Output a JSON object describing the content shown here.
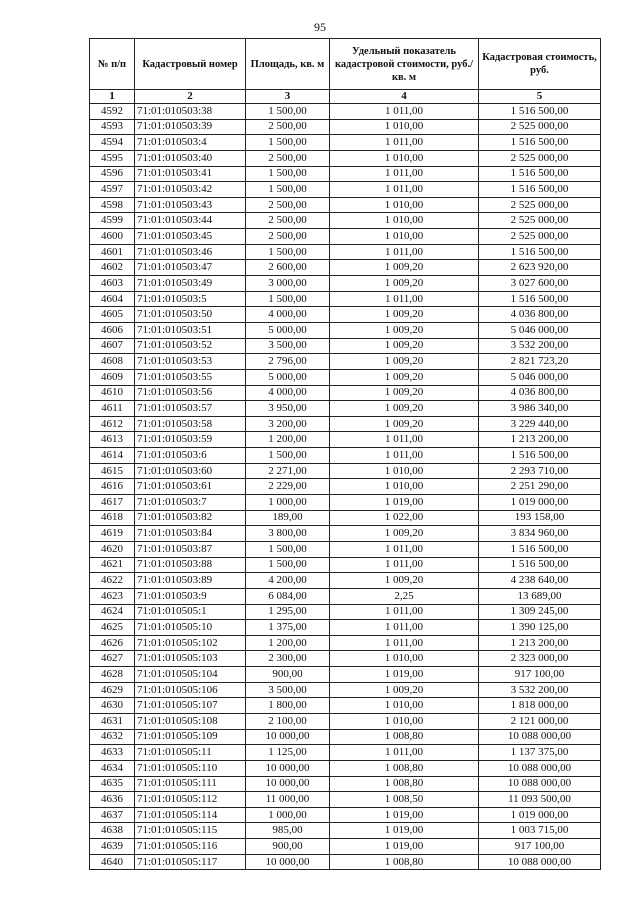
{
  "page_number": "95",
  "table": {
    "headers": [
      "№ п/п",
      "Кадастровый номер",
      "Площадь, кв. м",
      "Удельный показатель кадастровой стоимости, руб./кв. м",
      "Кадастровая стоимость, руб."
    ],
    "column_numbers": [
      "1",
      "2",
      "3",
      "4",
      "5"
    ],
    "rows": [
      [
        "4592",
        "71:01:010503:38",
        "1 500,00",
        "1 011,00",
        "1 516 500,00"
      ],
      [
        "4593",
        "71:01:010503:39",
        "2 500,00",
        "1 010,00",
        "2 525 000,00"
      ],
      [
        "4594",
        "71:01:010503:4",
        "1 500,00",
        "1 011,00",
        "1 516 500,00"
      ],
      [
        "4595",
        "71:01:010503:40",
        "2 500,00",
        "1 010,00",
        "2 525 000,00"
      ],
      [
        "4596",
        "71:01:010503:41",
        "1 500,00",
        "1 011,00",
        "1 516 500,00"
      ],
      [
        "4597",
        "71:01:010503:42",
        "1 500,00",
        "1 011,00",
        "1 516 500,00"
      ],
      [
        "4598",
        "71:01:010503:43",
        "2 500,00",
        "1 010,00",
        "2 525 000,00"
      ],
      [
        "4599",
        "71:01:010503:44",
        "2 500,00",
        "1 010,00",
        "2 525 000,00"
      ],
      [
        "4600",
        "71:01:010503:45",
        "2 500,00",
        "1 010,00",
        "2 525 000,00"
      ],
      [
        "4601",
        "71:01:010503:46",
        "1 500,00",
        "1 011,00",
        "1 516 500,00"
      ],
      [
        "4602",
        "71:01:010503:47",
        "2 600,00",
        "1 009,20",
        "2 623 920,00"
      ],
      [
        "4603",
        "71:01:010503:49",
        "3 000,00",
        "1 009,20",
        "3 027 600,00"
      ],
      [
        "4604",
        "71:01:010503:5",
        "1 500,00",
        "1 011,00",
        "1 516 500,00"
      ],
      [
        "4605",
        "71:01:010503:50",
        "4 000,00",
        "1 009,20",
        "4 036 800,00"
      ],
      [
        "4606",
        "71:01:010503:51",
        "5 000,00",
        "1 009,20",
        "5 046 000,00"
      ],
      [
        "4607",
        "71:01:010503:52",
        "3 500,00",
        "1 009,20",
        "3 532 200,00"
      ],
      [
        "4608",
        "71:01:010503:53",
        "2 796,00",
        "1 009,20",
        "2 821 723,20"
      ],
      [
        "4609",
        "71:01:010503:55",
        "5 000,00",
        "1 009,20",
        "5 046 000,00"
      ],
      [
        "4610",
        "71:01:010503:56",
        "4 000,00",
        "1 009,20",
        "4 036 800,00"
      ],
      [
        "4611",
        "71:01:010503:57",
        "3 950,00",
        "1 009,20",
        "3 986 340,00"
      ],
      [
        "4612",
        "71:01:010503:58",
        "3 200,00",
        "1 009,20",
        "3 229 440,00"
      ],
      [
        "4613",
        "71:01:010503:59",
        "1 200,00",
        "1 011,00",
        "1 213 200,00"
      ],
      [
        "4614",
        "71:01:010503:6",
        "1 500,00",
        "1 011,00",
        "1 516 500,00"
      ],
      [
        "4615",
        "71:01:010503:60",
        "2 271,00",
        "1 010,00",
        "2 293 710,00"
      ],
      [
        "4616",
        "71:01:010503:61",
        "2 229,00",
        "1 010,00",
        "2 251 290,00"
      ],
      [
        "4617",
        "71:01:010503:7",
        "1 000,00",
        "1 019,00",
        "1 019 000,00"
      ],
      [
        "4618",
        "71:01:010503:82",
        "189,00",
        "1 022,00",
        "193 158,00"
      ],
      [
        "4619",
        "71:01:010503:84",
        "3 800,00",
        "1 009,20",
        "3 834 960,00"
      ],
      [
        "4620",
        "71:01:010503:87",
        "1 500,00",
        "1 011,00",
        "1 516 500,00"
      ],
      [
        "4621",
        "71:01:010503:88",
        "1 500,00",
        "1 011,00",
        "1 516 500,00"
      ],
      [
        "4622",
        "71:01:010503:89",
        "4 200,00",
        "1 009,20",
        "4 238 640,00"
      ],
      [
        "4623",
        "71:01:010503:9",
        "6 084,00",
        "2,25",
        "13 689,00"
      ],
      [
        "4624",
        "71:01:010505:1",
        "1 295,00",
        "1 011,00",
        "1 309 245,00"
      ],
      [
        "4625",
        "71:01:010505:10",
        "1 375,00",
        "1 011,00",
        "1 390 125,00"
      ],
      [
        "4626",
        "71:01:010505:102",
        "1 200,00",
        "1 011,00",
        "1 213 200,00"
      ],
      [
        "4627",
        "71:01:010505:103",
        "2 300,00",
        "1 010,00",
        "2 323 000,00"
      ],
      [
        "4628",
        "71:01:010505:104",
        "900,00",
        "1 019,00",
        "917 100,00"
      ],
      [
        "4629",
        "71:01:010505:106",
        "3 500,00",
        "1 009,20",
        "3 532 200,00"
      ],
      [
        "4630",
        "71:01:010505:107",
        "1 800,00",
        "1 010,00",
        "1 818 000,00"
      ],
      [
        "4631",
        "71:01:010505:108",
        "2 100,00",
        "1 010,00",
        "2 121 000,00"
      ],
      [
        "4632",
        "71:01:010505:109",
        "10 000,00",
        "1 008,80",
        "10 088 000,00"
      ],
      [
        "4633",
        "71:01:010505:11",
        "1 125,00",
        "1 011,00",
        "1 137 375,00"
      ],
      [
        "4634",
        "71:01:010505:110",
        "10 000,00",
        "1 008,80",
        "10 088 000,00"
      ],
      [
        "4635",
        "71:01:010505:111",
        "10 000,00",
        "1 008,80",
        "10 088 000,00"
      ],
      [
        "4636",
        "71:01:010505:112",
        "11 000,00",
        "1 008,50",
        "11 093 500,00"
      ],
      [
        "4637",
        "71:01:010505:114",
        "1 000,00",
        "1 019,00",
        "1 019 000,00"
      ],
      [
        "4638",
        "71:01:010505:115",
        "985,00",
        "1 019,00",
        "1 003 715,00"
      ],
      [
        "4639",
        "71:01:010505:116",
        "900,00",
        "1 019,00",
        "917 100,00"
      ],
      [
        "4640",
        "71:01:010505:117",
        "10 000,00",
        "1 008,80",
        "10 088 000,00"
      ]
    ]
  }
}
